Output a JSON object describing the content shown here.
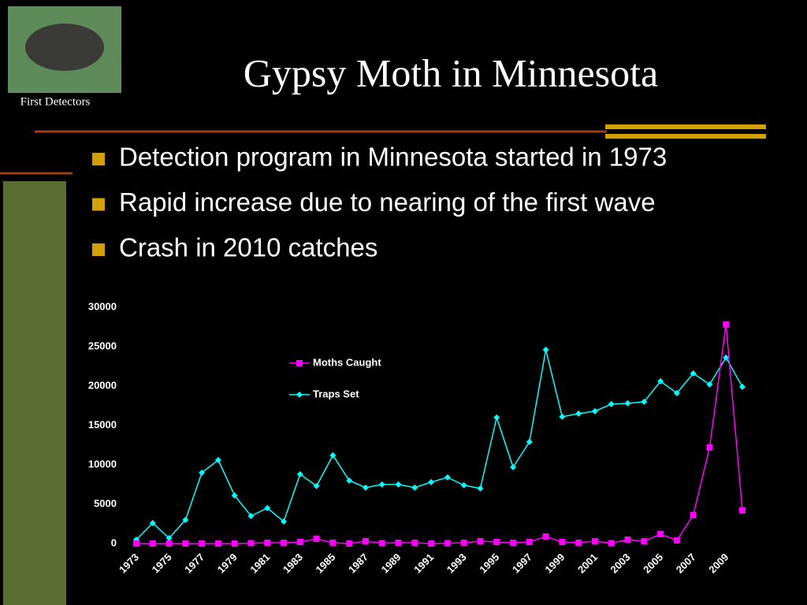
{
  "header": {
    "title": "Gypsy Moth in Minnesota",
    "caption": "First Detectors"
  },
  "bullets": [
    "Detection program in Minnesota started in 1973",
    "Rapid increase due to nearing of the first wave",
    "Crash in 2010 catches"
  ],
  "chart_data": {
    "type": "line",
    "categories": [
      "1973",
      null,
      "1975",
      null,
      "1977",
      null,
      "1979",
      null,
      "1981",
      null,
      "1983",
      null,
      "1985",
      null,
      "1987",
      null,
      "1989",
      null,
      "1991",
      null,
      "1993",
      null,
      "1995",
      null,
      "1997",
      null,
      "1999",
      null,
      "2001",
      null,
      "2003",
      null,
      "2005",
      null,
      "2007",
      null,
      "2009",
      null
    ],
    "series": [
      {
        "name": "Moths Caught",
        "color": "#ff00ff",
        "marker": "square",
        "values": [
          0,
          0,
          0,
          0,
          0,
          0,
          0,
          50,
          100,
          100,
          200,
          600,
          100,
          0,
          300,
          50,
          100,
          100,
          0,
          50,
          100,
          300,
          200,
          100,
          200,
          900,
          200,
          100,
          300,
          50,
          500,
          300,
          1200,
          400,
          3600,
          12200,
          27800,
          4200
        ]
      },
      {
        "name": "Traps Set",
        "color": "#00ffff",
        "marker": "diamond",
        "values": [
          500,
          2600,
          700,
          3000,
          9000,
          10600,
          6100,
          3500,
          4500,
          2800,
          8800,
          7300,
          11200,
          8000,
          7100,
          7500,
          7500,
          7100,
          7800,
          8400,
          7400,
          7000,
          16000,
          9700,
          12900,
          24600,
          16100,
          16500,
          16800,
          17700,
          17800,
          18000,
          20600,
          19100,
          21600,
          20200,
          23600,
          19900
        ]
      }
    ],
    "ylim": [
      0,
      30000
    ],
    "yticks": [
      0,
      5000,
      10000,
      15000,
      20000,
      25000,
      30000
    ],
    "grid": false
  }
}
